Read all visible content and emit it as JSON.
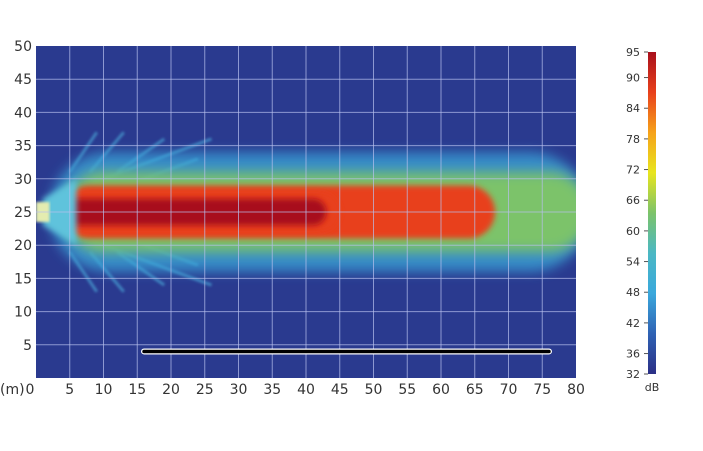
{
  "chart_data": {
    "type": "heatmap",
    "title": "",
    "xlabel": "",
    "ylabel": "",
    "x_unit_label": "(m)",
    "xlim": [
      0,
      80
    ],
    "ylim": [
      0,
      50
    ],
    "x_ticks": [
      0,
      5,
      10,
      15,
      20,
      25,
      30,
      35,
      40,
      45,
      50,
      55,
      60,
      65,
      70,
      75,
      80
    ],
    "y_ticks": [
      5,
      10,
      15,
      20,
      25,
      30,
      35,
      40,
      45,
      50
    ],
    "grid": true,
    "background_color": "#2a3a8f",
    "colorbar": {
      "unit": "dB",
      "range": [
        32,
        95
      ],
      "ticks": [
        32,
        36,
        42,
        48,
        54,
        60,
        66,
        72,
        78,
        84,
        90,
        95
      ],
      "colors": [
        "#2b2f86",
        "#2f62b4",
        "#3aa8dc",
        "#4bb8c4",
        "#7cc36a",
        "#e8e51e",
        "#f6a21a",
        "#e8401c",
        "#a8101c"
      ],
      "placement": "right"
    },
    "annotations": [
      {
        "name": "source",
        "x": [
          0,
          2
        ],
        "y": 25
      },
      {
        "name": "line",
        "x": [
          16,
          76
        ],
        "y": 4,
        "color": "#000000"
      }
    ],
    "plume": {
      "axis_y": 25,
      "peak_level_db": 95,
      "levels": [
        {
          "db": 48,
          "x": [
            2,
            82
          ],
          "y": [
            16,
            34
          ]
        },
        {
          "db": 66,
          "x": [
            4,
            82
          ],
          "y": [
            19,
            31
          ]
        },
        {
          "db": 84,
          "x": [
            4,
            68
          ],
          "y": [
            21,
            29
          ]
        },
        {
          "db": 90,
          "x": [
            4,
            45
          ],
          "y": [
            22,
            28
          ]
        },
        {
          "db": 95,
          "x": [
            4,
            43
          ],
          "y": [
            23,
            27
          ]
        }
      ]
    }
  }
}
